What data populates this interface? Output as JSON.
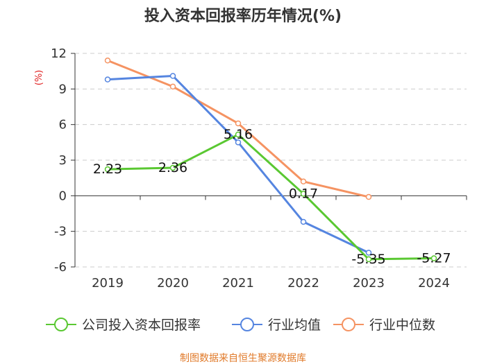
{
  "title": "投入资本回报率历年情况(%)",
  "source": "制图数据来自恒生聚源数据库",
  "colors": {
    "axis_label": "#e02020",
    "source": "#e07a2a",
    "grid": "#cccccc",
    "axis": "#333333"
  },
  "chart_data": {
    "type": "line",
    "title": "投入资本回报率历年情况(%)",
    "xlabel": "",
    "ylabel": "(%)",
    "ylim": [
      -6,
      12
    ],
    "yticks": [
      12,
      9,
      6,
      3,
      0,
      -3,
      -6
    ],
    "categories": [
      "2019",
      "2020",
      "2021",
      "2022",
      "2023",
      "2024"
    ],
    "series": [
      {
        "name": "公司投入资本回报率",
        "color": "#5ac832",
        "values": [
          2.23,
          2.36,
          5.16,
          0.17,
          -5.35,
          -5.27
        ],
        "labels": [
          "2.23",
          "2.36",
          "5.16",
          "0.17",
          "-5.35",
          "-5.27"
        ]
      },
      {
        "name": "行业均值",
        "color": "#5585e0",
        "values": [
          9.8,
          10.1,
          4.5,
          -2.2,
          -4.8,
          null
        ]
      },
      {
        "name": "行业中位数",
        "color": "#f59362",
        "values": [
          11.4,
          9.2,
          6.1,
          1.2,
          -0.1,
          null
        ]
      }
    ],
    "legend_position": "bottom"
  }
}
